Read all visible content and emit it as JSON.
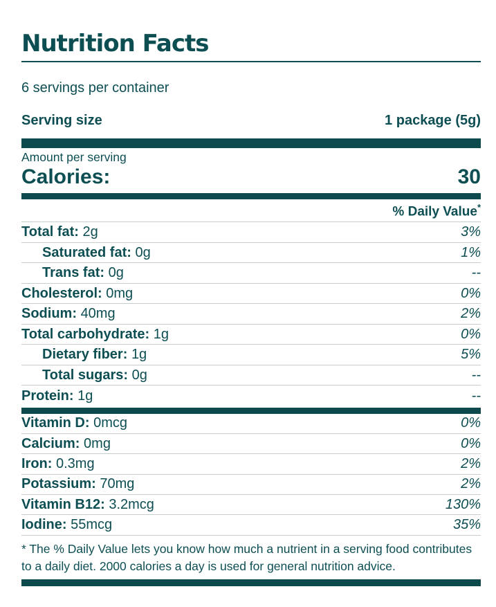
{
  "colors": {
    "accent_teal": "#0d4e53",
    "bar_teal": "#0d4a4d",
    "divider_gray": "#c7cccc"
  },
  "header": {
    "title": "Nutrition Facts"
  },
  "serving_info": {
    "servings_per_container": "6 servings per container",
    "serving_size_label": "Serving size",
    "serving_size_value": "1 package (5g)"
  },
  "calories": {
    "amount_per_serving_label": "Amount per serving",
    "label": "Calories:",
    "value": "30"
  },
  "daily_value_header": {
    "label": "% Daily Value",
    "asterisk": "*"
  },
  "nutrients": [
    {
      "label": "Total fat:",
      "amount": "2g",
      "dv": "3%"
    },
    {
      "label": "Saturated fat:",
      "amount": "0g",
      "dv": "1%"
    },
    {
      "label": "Trans fat:",
      "amount": "0g",
      "dv": "--"
    },
    {
      "label": "Cholesterol:",
      "amount": "0mg",
      "dv": "0%"
    },
    {
      "label": "Sodium:",
      "amount": "40mg",
      "dv": "2%"
    },
    {
      "label": "Total carbohydrate:",
      "amount": "1g",
      "dv": "0%"
    },
    {
      "label": "Dietary fiber:",
      "amount": "1g",
      "dv": "5%"
    },
    {
      "label": "Total sugars:",
      "amount": "0g",
      "dv": "--"
    },
    {
      "label": "Protein:",
      "amount": "1g",
      "dv": "--"
    }
  ],
  "micronutrients": [
    {
      "label": "Vitamin D:",
      "amount": "0mcg",
      "dv": "0%"
    },
    {
      "label": "Calcium:",
      "amount": "0mg",
      "dv": "0%"
    },
    {
      "label": "Iron:",
      "amount": "0.3mg",
      "dv": "2%"
    },
    {
      "label": "Potassium:",
      "amount": "70mg",
      "dv": "2%"
    },
    {
      "label": "Vitamin B12:",
      "amount": "3.2mcg",
      "dv": "130%"
    },
    {
      "label": "Iodine:",
      "amount": "55mcg",
      "dv": "35%"
    }
  ],
  "footnote": {
    "text": "* The % Daily Value lets you know how much a nutrient in a serving food contributes to a daily diet. 2000 calories a day is used for general nutrition advice."
  }
}
